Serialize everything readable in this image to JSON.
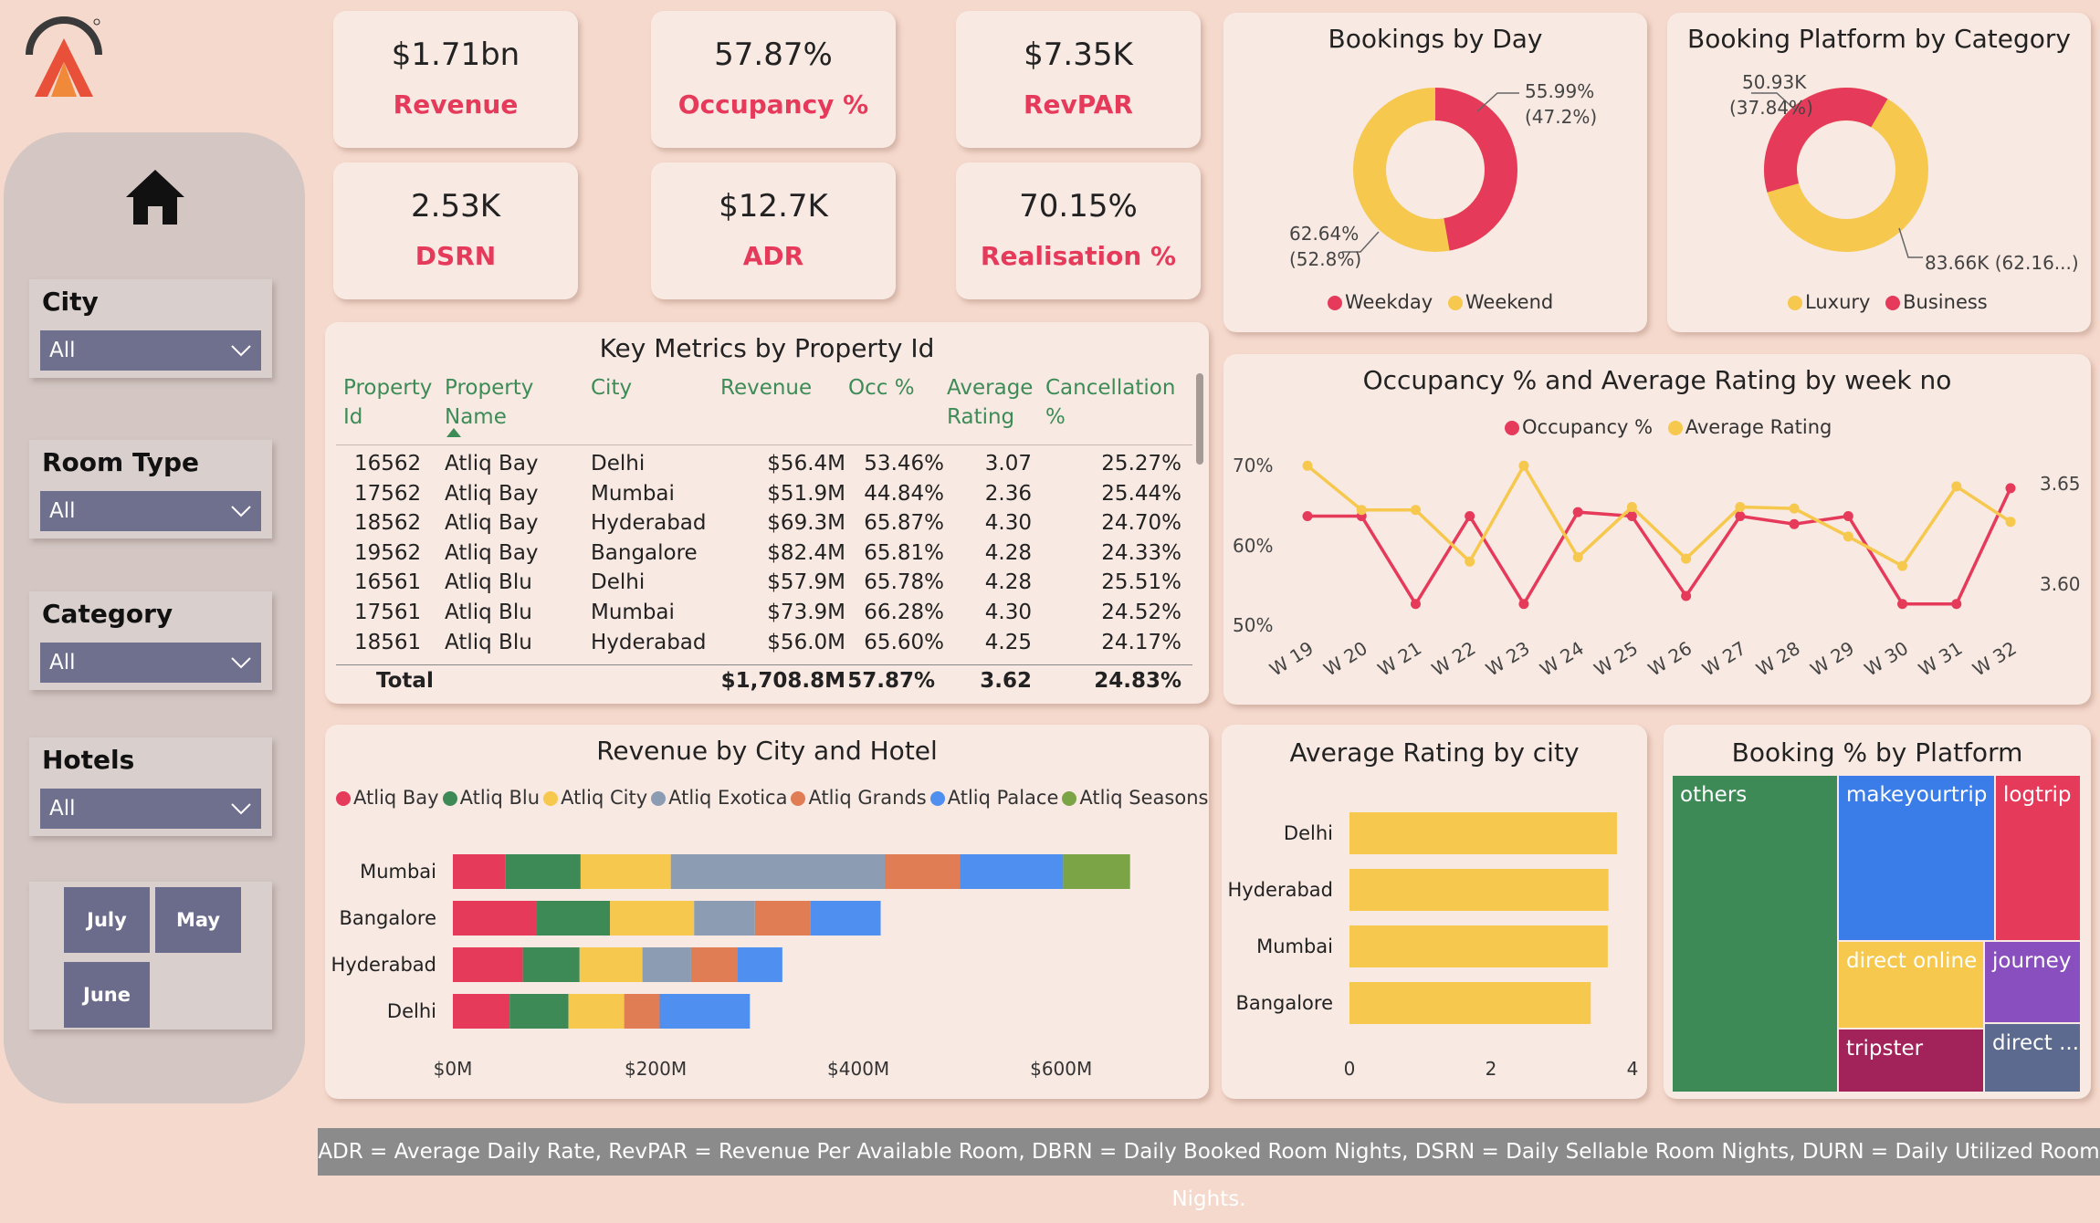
{
  "kpis": [
    {
      "value": "$1.71bn",
      "label": "Revenue"
    },
    {
      "value": "57.87%",
      "label": "Occupancy %"
    },
    {
      "value": "$7.35K",
      "label": "RevPAR"
    },
    {
      "value": "2.53K",
      "label": "DSRN"
    },
    {
      "value": "$12.7K",
      "label": "ADR"
    },
    {
      "value": "70.15%",
      "label": "Realisation %"
    }
  ],
  "filters": [
    {
      "label": "City",
      "value": "All"
    },
    {
      "label": "Room Type",
      "value": "All"
    },
    {
      "label": "Category",
      "value": "All"
    },
    {
      "label": "Hotels",
      "value": "All"
    }
  ],
  "months": [
    "July",
    "May",
    "June"
  ],
  "bookings_by_day": {
    "title": "Bookings by Day",
    "label_a": "55.99%",
    "label_a2": "(47.2%)",
    "label_b": "62.64%",
    "label_b2": "(52.8%)",
    "legend": [
      "Weekday",
      "Weekend"
    ]
  },
  "platform_category": {
    "title": "Booking Platform by Category",
    "label_a": "50.93K",
    "label_a2": "(37.84%)",
    "label_b": "83.66K (62.16...)",
    "legend": [
      "Luxury",
      "Business"
    ]
  },
  "key_metrics": {
    "title": "Key Metrics by Property Id",
    "headers": [
      "Property Id",
      "Property Name",
      "City",
      "Revenue",
      "Occ %",
      "Average Rating",
      "Cancellation %"
    ],
    "header_lines": [
      [
        "Property",
        "Id"
      ],
      [
        "Property",
        "Name"
      ],
      [
        "City",
        ""
      ],
      [
        "Revenue",
        ""
      ],
      [
        "Occ %",
        ""
      ],
      [
        "Average",
        "Rating"
      ],
      [
        "Cancellation",
        "%"
      ]
    ],
    "rows": [
      [
        "16562",
        "Atliq Bay",
        "Delhi",
        "$56.4M",
        "53.46%",
        "3.07",
        "25.27%"
      ],
      [
        "17562",
        "Atliq Bay",
        "Mumbai",
        "$51.9M",
        "44.84%",
        "2.36",
        "25.44%"
      ],
      [
        "18562",
        "Atliq Bay",
        "Hyderabad",
        "$69.3M",
        "65.87%",
        "4.30",
        "24.70%"
      ],
      [
        "19562",
        "Atliq Bay",
        "Bangalore",
        "$82.4M",
        "65.81%",
        "4.28",
        "24.33%"
      ],
      [
        "16561",
        "Atliq Blu",
        "Delhi",
        "$57.9M",
        "65.78%",
        "4.28",
        "25.51%"
      ],
      [
        "17561",
        "Atliq Blu",
        "Mumbai",
        "$73.9M",
        "66.28%",
        "4.30",
        "24.52%"
      ],
      [
        "18561",
        "Atliq Blu",
        "Hyderabad",
        "$56.0M",
        "65.60%",
        "4.25",
        "24.17%"
      ]
    ],
    "total": [
      "Total",
      "$1,708.8M",
      "57.87%",
      "3.62",
      "24.83%"
    ]
  },
  "occ_rating": {
    "title": "Occupancy % and Average Rating by week no",
    "legend": [
      "Occupancy %",
      "Average Rating"
    ],
    "y_left": [
      "70%",
      "60%",
      "50%"
    ],
    "y_right": [
      "3.65",
      "3.60"
    ]
  },
  "revenue_city_hotel": {
    "title": "Revenue by City and Hotel",
    "legend": [
      "Atliq Bay",
      "Atliq Blu",
      "Atliq City",
      "Atliq Exotica",
      "Atliq Grands",
      "Atliq Palace",
      "Atliq Seasons"
    ],
    "x_ticks": [
      "$0M",
      "$200M",
      "$400M",
      "$600M"
    ]
  },
  "rating_by_city": {
    "title": "Average Rating by city",
    "x_ticks": [
      "0",
      "2",
      "4"
    ]
  },
  "platform_share": {
    "title": "Booking % by Platform",
    "tiles": [
      "others",
      "makeyourtrip",
      "logtrip",
      "direct online",
      "journey",
      "tripster",
      "direct ..."
    ]
  },
  "footer": "ADR = Average Daily Rate, RevPAR = Revenue Per Available Room, DBRN = Daily Booked Room Nights, DSRN = Daily Sellable Room Nights, DURN = Daily Utilized Room Nights.",
  "colors": {
    "accent_red": "#e63a5b",
    "yellow": "#f6c84d",
    "green": "#3e8a57",
    "blue": "#3b7de8",
    "slicer": "#6f6f8e"
  },
  "chart_data": [
    {
      "type": "pie",
      "title": "Bookings by Day",
      "categories": [
        "Weekday",
        "Weekend"
      ],
      "values": [
        62.64,
        55.99
      ],
      "shares": [
        52.8,
        47.2
      ]
    },
    {
      "type": "pie",
      "title": "Booking Platform by Category",
      "categories": [
        "Luxury",
        "Business"
      ],
      "values_k": [
        83.66,
        50.93
      ],
      "shares": [
        62.16,
        37.84
      ]
    },
    {
      "type": "line",
      "title": "Occupancy % and Average Rating by week no",
      "x": [
        "W 19",
        "W 20",
        "W 21",
        "W 22",
        "W 23",
        "W 24",
        "W 25",
        "W 26",
        "W 27",
        "W 28",
        "W 29",
        "W 30",
        "W 31",
        "W 32"
      ],
      "series": [
        {
          "name": "Occupancy %",
          "values": [
            62,
            62,
            51,
            62,
            51,
            62.5,
            62,
            52,
            62,
            61,
            62,
            51,
            51,
            65.5
          ]
        },
        {
          "name": "Average Rating",
          "values": [
            3.66,
            3.63,
            3.63,
            3.595,
            3.66,
            3.598,
            3.632,
            3.597,
            3.632,
            3.631,
            3.612,
            3.592,
            3.646,
            3.622
          ]
        }
      ],
      "ylim_left": [
        48,
        72
      ],
      "ylim_right": [
        3.55,
        3.68
      ]
    },
    {
      "type": "bar",
      "title": "Revenue by City and Hotel",
      "orientation": "horizontal-stacked",
      "categories": [
        "Mumbai",
        "Bangalore",
        "Hyderabad",
        "Delhi"
      ],
      "series": [
        {
          "name": "Atliq Bay",
          "values": [
            52,
            82,
            69,
            56
          ]
        },
        {
          "name": "Atliq Blu",
          "values": [
            74,
            73,
            56,
            58
          ]
        },
        {
          "name": "Atliq City",
          "values": [
            89,
            83,
            62,
            55
          ]
        },
        {
          "name": "Atliq Exotica",
          "values": [
            211,
            60,
            48,
            0
          ]
        },
        {
          "name": "Atliq Grands",
          "values": [
            74,
            55,
            46,
            35
          ]
        },
        {
          "name": "Atliq Palace",
          "values": [
            102,
            69,
            44,
            89
          ]
        },
        {
          "name": "Atliq Seasons",
          "values": [
            66,
            0,
            0,
            0
          ]
        }
      ],
      "xlim": [
        0,
        680
      ]
    },
    {
      "type": "bar",
      "title": "Average Rating by city",
      "orientation": "horizontal",
      "categories": [
        "Delhi",
        "Hyderabad",
        "Mumbai",
        "Bangalore"
      ],
      "values": [
        3.78,
        3.66,
        3.65,
        3.41
      ],
      "xlim": [
        0,
        4
      ]
    },
    {
      "type": "table",
      "title": "Booking % by Platform",
      "categories": [
        "others",
        "makeyourtrip",
        "logtrip",
        "direct online",
        "journey",
        "tripster",
        "direct ..."
      ]
    }
  ]
}
